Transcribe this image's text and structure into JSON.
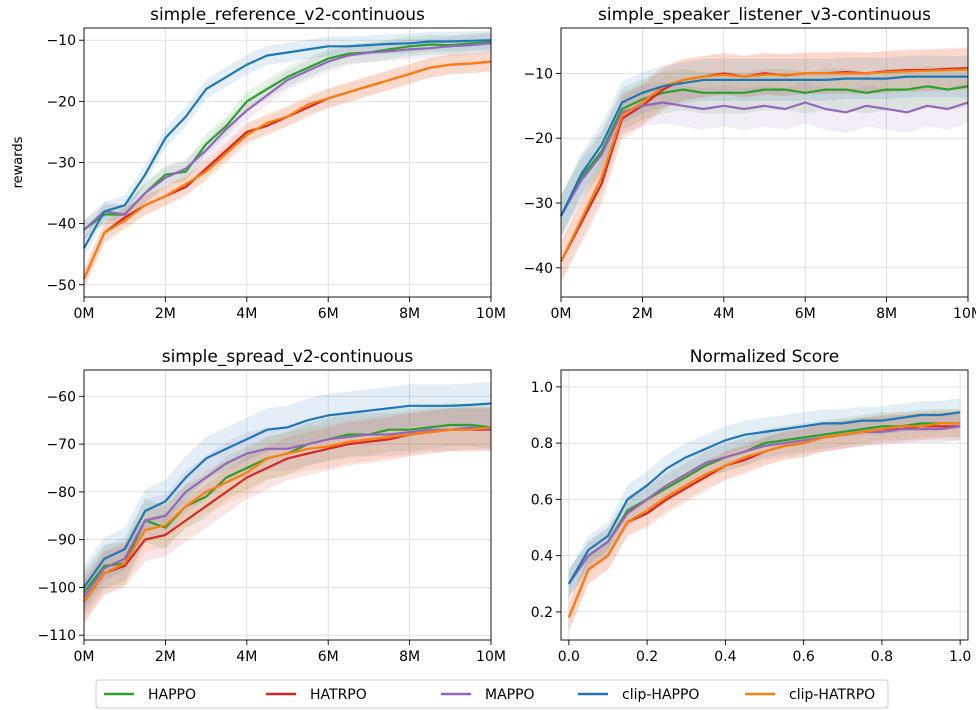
{
  "colors": {
    "HAPPO": "#2ca02c",
    "HATRPO": "#d62728",
    "MAPPO": "#9467bd",
    "clip-HAPPO": "#1f77b4",
    "clip-HATRPO": "#ff7f0e"
  },
  "legend": {
    "placement": "bottom-center",
    "entries": [
      "HAPPO",
      "HATRPO",
      "MAPPO",
      "clip-HAPPO",
      "clip-HATRPO"
    ]
  },
  "chart_data": [
    {
      "type": "line",
      "title": "simple_reference_v2-continuous",
      "ylabel": "rewards",
      "xlabel": "",
      "xlim": [
        0,
        10
      ],
      "ylim": [
        -52,
        -8
      ],
      "xticks": [
        0,
        2,
        4,
        6,
        8,
        10
      ],
      "xtick_labels": [
        "0M",
        "2M",
        "4M",
        "6M",
        "8M",
        "10M"
      ],
      "yticks": [
        -50,
        -40,
        -30,
        -20,
        -10
      ],
      "ytick_labels": [
        "−50",
        "−40",
        "−30",
        "−20",
        "−10"
      ],
      "grid": true,
      "x": [
        0,
        0.5,
        1,
        1.5,
        2,
        2.5,
        3,
        3.5,
        4,
        4.5,
        5,
        5.5,
        6,
        6.5,
        7,
        7.5,
        8,
        8.5,
        9,
        9.5,
        10
      ],
      "series": [
        {
          "name": "HAPPO",
          "values": [
            -41,
            -38.5,
            -38.5,
            -35,
            -32,
            -31.5,
            -27,
            -24,
            -20,
            -18,
            -16,
            -14.5,
            -13,
            -12.2,
            -12,
            -11.5,
            -11,
            -10.7,
            -10.8,
            -10.5,
            -10.3
          ]
        },
        {
          "name": "HATRPO",
          "values": [
            -49,
            -41.5,
            -39,
            -37,
            -35.5,
            -34,
            -31,
            -28,
            -25,
            -24,
            -22.5,
            -21,
            -19.5,
            -18.5,
            -17.5,
            -16.5,
            -15.5,
            -14.5,
            -14,
            -13.8,
            -13.5
          ]
        },
        {
          "name": "MAPPO",
          "values": [
            -41,
            -38,
            -38.5,
            -35,
            -32.5,
            -31,
            -28,
            -24.5,
            -21.5,
            -19,
            -16.5,
            -15,
            -13.5,
            -12.5,
            -12,
            -11.8,
            -11.5,
            -11.3,
            -11,
            -10.8,
            -10.5
          ]
        },
        {
          "name": "clip-HAPPO",
          "values": [
            -44,
            -38,
            -37,
            -32,
            -26,
            -22.5,
            -18,
            -16,
            -14,
            -12.5,
            -12,
            -11.5,
            -11,
            -11,
            -10.8,
            -10.6,
            -10.5,
            -10.2,
            -10.2,
            -10.1,
            -10
          ]
        },
        {
          "name": "clip-HATRPO",
          "values": [
            -49,
            -41.5,
            -39.5,
            -37,
            -35.5,
            -33.5,
            -31.5,
            -28.5,
            -25.5,
            -23.5,
            -22.5,
            -20.5,
            -19.5,
            -18.5,
            -17.5,
            -16.5,
            -15.5,
            -14.5,
            -14,
            -13.8,
            -13.5
          ]
        }
      ]
    },
    {
      "type": "line",
      "title": "simple_speaker_listener_v3-continuous",
      "ylabel": "",
      "xlabel": "",
      "xlim": [
        0,
        10
      ],
      "ylim": [
        -44.5,
        -3
      ],
      "xticks": [
        0,
        2,
        4,
        6,
        8,
        10
      ],
      "xtick_labels": [
        "0M",
        "2M",
        "4M",
        "6M",
        "8M",
        "10M"
      ],
      "yticks": [
        -40,
        -30,
        -20,
        -10
      ],
      "ytick_labels": [
        "−40",
        "−30",
        "−20",
        "−10"
      ],
      "grid": true,
      "x": [
        0,
        0.5,
        1,
        1.5,
        2,
        2.5,
        3,
        3.5,
        4,
        4.5,
        5,
        5.5,
        6,
        6.5,
        7,
        7.5,
        8,
        8.5,
        9,
        9.5,
        10
      ],
      "series": [
        {
          "name": "HAPPO",
          "values": [
            -32,
            -26,
            -22,
            -15.5,
            -14,
            -13,
            -12.5,
            -13,
            -13,
            -13,
            -12.5,
            -12.5,
            -13,
            -12.5,
            -12.5,
            -13,
            -12.5,
            -12.5,
            -12,
            -12.5,
            -12
          ]
        },
        {
          "name": "HATRPO",
          "values": [
            -39,
            -33,
            -27,
            -17,
            -15,
            -12.5,
            -11,
            -10.5,
            -10,
            -10.5,
            -10,
            -10.3,
            -10,
            -10,
            -9.8,
            -10,
            -9.7,
            -9.5,
            -9.5,
            -9.3,
            -9.2
          ]
        },
        {
          "name": "MAPPO",
          "values": [
            -32,
            -26.5,
            -22.5,
            -16,
            -15,
            -14.5,
            -15,
            -15.5,
            -15,
            -15.5,
            -15,
            -15.5,
            -14.5,
            -15.5,
            -16,
            -15,
            -15.5,
            -16,
            -15,
            -15.5,
            -14.5
          ]
        },
        {
          "name": "clip-HAPPO",
          "values": [
            -32,
            -25.5,
            -21,
            -14.5,
            -13,
            -12,
            -11.5,
            -11,
            -11,
            -11,
            -11,
            -11,
            -11,
            -11,
            -10.8,
            -10.8,
            -10.8,
            -10.5,
            -10.5,
            -10.5,
            -10.5
          ]
        },
        {
          "name": "clip-HATRPO",
          "values": [
            -39,
            -32.5,
            -26,
            -16.5,
            -14.5,
            -12,
            -11,
            -10.5,
            -10.2,
            -10.5,
            -10.2,
            -10.2,
            -10,
            -10,
            -10,
            -10,
            -9.8,
            -9.7,
            -9.6,
            -9.5,
            -9.4
          ]
        }
      ]
    },
    {
      "type": "line",
      "title": "simple_spread_v2-continuous",
      "ylabel": "",
      "xlabel": "",
      "xlim": [
        0,
        10
      ],
      "ylim": [
        -111,
        -54.5
      ],
      "xticks": [
        0,
        2,
        4,
        6,
        8,
        10
      ],
      "xtick_labels": [
        "0M",
        "2M",
        "4M",
        "6M",
        "8M",
        "10M"
      ],
      "yticks": [
        -110,
        -100,
        -90,
        -80,
        -70,
        -60
      ],
      "ytick_labels": [
        "−110",
        "−100",
        "−90",
        "−80",
        "−70",
        "−60"
      ],
      "grid": true,
      "x": [
        0,
        0.5,
        1,
        1.5,
        2,
        2.5,
        3,
        3.5,
        4,
        4.5,
        5,
        5.5,
        6,
        6.5,
        7,
        7.5,
        8,
        8.5,
        9,
        9.5,
        10
      ],
      "series": [
        {
          "name": "HAPPO",
          "values": [
            -101,
            -95.5,
            -95,
            -86,
            -87.5,
            -83,
            -81,
            -77,
            -75,
            -73,
            -72,
            -70,
            -69,
            -68,
            -68,
            -67,
            -67,
            -66.5,
            -66,
            -66,
            -66.5
          ]
        },
        {
          "name": "HATRPO",
          "values": [
            -103,
            -97,
            -95.5,
            -90,
            -89,
            -86,
            -83,
            -80,
            -77,
            -75,
            -73,
            -72,
            -71,
            -70,
            -69.5,
            -69,
            -68,
            -67.5,
            -67,
            -67,
            -67
          ]
        },
        {
          "name": "MAPPO",
          "values": [
            -102,
            -96,
            -94,
            -86,
            -85,
            -80,
            -77,
            -74,
            -72,
            -71,
            -71,
            -70,
            -69,
            -68.5,
            -68,
            -68,
            -67.5,
            -67,
            -67,
            -66.5,
            -67
          ]
        },
        {
          "name": "clip-HAPPO",
          "values": [
            -100,
            -94,
            -92,
            -84,
            -82,
            -77,
            -73,
            -71,
            -69,
            -67,
            -66.5,
            -65,
            -64,
            -63.5,
            -63,
            -62.5,
            -62,
            -62,
            -62,
            -61.8,
            -61.5
          ]
        },
        {
          "name": "clip-HATRPO",
          "values": [
            -103,
            -97,
            -95,
            -88,
            -87,
            -83,
            -80,
            -78,
            -76,
            -73,
            -72,
            -71,
            -70.5,
            -69.5,
            -69,
            -68.5,
            -68,
            -67.5,
            -67,
            -67,
            -66.5
          ]
        }
      ]
    },
    {
      "type": "line",
      "title": "Normalized Score",
      "ylabel": "",
      "xlabel": "",
      "xlim": [
        -0.02,
        1.02
      ],
      "ylim": [
        0.1,
        1.06
      ],
      "xticks": [
        0,
        0.2,
        0.4,
        0.6,
        0.8,
        1.0
      ],
      "xtick_labels": [
        "0.0",
        "0.2",
        "0.4",
        "0.6",
        "0.8",
        "1.0"
      ],
      "yticks": [
        0.2,
        0.4,
        0.6,
        0.8,
        1.0
      ],
      "ytick_labels": [
        "0.2",
        "0.4",
        "0.6",
        "0.8",
        "1.0"
      ],
      "grid": true,
      "x": [
        0,
        0.05,
        0.1,
        0.15,
        0.2,
        0.25,
        0.3,
        0.35,
        0.4,
        0.45,
        0.5,
        0.55,
        0.6,
        0.65,
        0.7,
        0.75,
        0.8,
        0.85,
        0.9,
        0.95,
        1.0
      ],
      "series": [
        {
          "name": "HAPPO",
          "values": [
            0.3,
            0.4,
            0.45,
            0.56,
            0.6,
            0.64,
            0.68,
            0.72,
            0.75,
            0.77,
            0.8,
            0.81,
            0.82,
            0.83,
            0.84,
            0.85,
            0.86,
            0.86,
            0.87,
            0.87,
            0.87
          ]
        },
        {
          "name": "HATRPO",
          "values": [
            0.18,
            0.35,
            0.4,
            0.52,
            0.55,
            0.6,
            0.64,
            0.68,
            0.72,
            0.74,
            0.77,
            0.79,
            0.8,
            0.82,
            0.83,
            0.84,
            0.85,
            0.85,
            0.86,
            0.86,
            0.86
          ]
        },
        {
          "name": "MAPPO",
          "values": [
            0.3,
            0.4,
            0.45,
            0.55,
            0.6,
            0.65,
            0.69,
            0.73,
            0.75,
            0.77,
            0.79,
            0.8,
            0.81,
            0.82,
            0.83,
            0.84,
            0.84,
            0.85,
            0.85,
            0.85,
            0.86
          ]
        },
        {
          "name": "clip-HAPPO",
          "values": [
            0.3,
            0.42,
            0.47,
            0.6,
            0.65,
            0.71,
            0.75,
            0.78,
            0.81,
            0.83,
            0.84,
            0.85,
            0.86,
            0.87,
            0.87,
            0.88,
            0.88,
            0.89,
            0.9,
            0.9,
            0.91
          ]
        },
        {
          "name": "clip-HATRPO",
          "values": [
            0.18,
            0.35,
            0.4,
            0.52,
            0.56,
            0.61,
            0.65,
            0.69,
            0.72,
            0.75,
            0.77,
            0.79,
            0.8,
            0.82,
            0.83,
            0.84,
            0.85,
            0.86,
            0.86,
            0.87,
            0.87
          ]
        }
      ]
    }
  ]
}
